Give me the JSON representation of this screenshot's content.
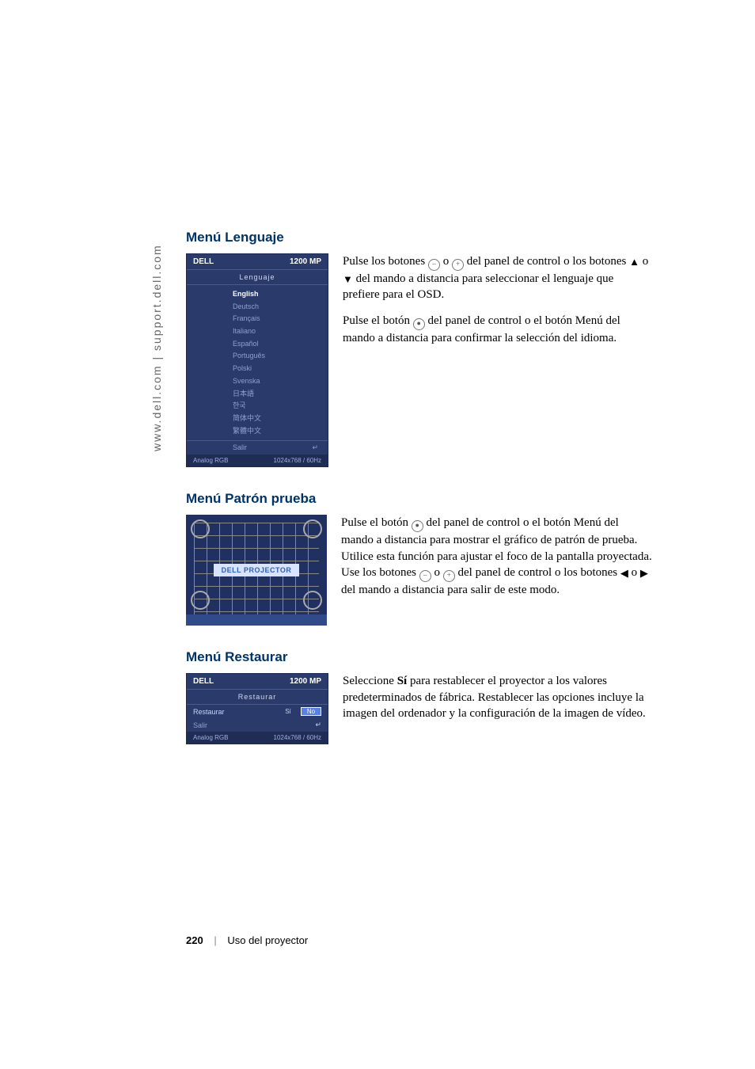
{
  "sidebar_url": "www.dell.com | support.dell.com",
  "sections": {
    "language": {
      "heading": "Menú Lenguaje",
      "para1_a": "Pulse los botones ",
      "para1_b": " o ",
      "para1_c": " del panel de control o los botones ",
      "para1_d": " o ",
      "para1_e": " del mando a distancia para seleccionar el lenguaje que prefiere para el OSD.",
      "para2_a": "Pulse el botón ",
      "para2_b": " del panel de control o el botón Menú del mando a distancia para confirmar la selección del idioma."
    },
    "pattern": {
      "heading": "Menú Patrón prueba",
      "para_a": "Pulse el botón ",
      "para_b": " del panel de control o el botón Menú del mando a distancia para mostrar el gráfico de patrón de prueba. Utilice esta función para ajustar el foco de la pantalla proyectada. Use los botones ",
      "para_c": " o ",
      "para_d": " del panel de control o los botones ",
      "para_e": " o ",
      "para_f": " del mando a distancia para salir de este modo."
    },
    "restore": {
      "heading": "Menú Restaurar",
      "para_a": "Seleccione ",
      "para_bold": "Sí",
      "para_b": " para restablecer el proyector a los valores predeterminados de fábrica. Restablecer las opciones incluye la imagen del ordenador y la configuración de la imagen de vídeo."
    }
  },
  "osd_lang": {
    "brand": "DELL",
    "model": "1200 MP",
    "title": "Lenguaje",
    "items": [
      "English",
      "Deutsch",
      "Français",
      "Italiano",
      "Español",
      "Português",
      "Polski",
      "Svenska",
      "日本語",
      "한국",
      "简体中文",
      "繁體中文"
    ],
    "salir": "Salir",
    "footer_left": "Analog RGB",
    "footer_right": "1024x768 / 60Hz"
  },
  "test_pattern": {
    "center_text": "DELL PROJECTOR"
  },
  "osd_restore": {
    "brand": "DELL",
    "model": "1200 MP",
    "title": "Restaurar",
    "row_label": "Restaurar",
    "opt_si": "Sí",
    "opt_no": "No",
    "salir": "Salir",
    "footer_left": "Analog RGB",
    "footer_right": "1024x768 / 60Hz"
  },
  "footer": {
    "page_num": "220",
    "page_label": "Uso del proyector"
  },
  "colors": {
    "heading": "#003366",
    "osd_bg": "#2a3a6a",
    "osd_accent": "#5a80e0"
  }
}
